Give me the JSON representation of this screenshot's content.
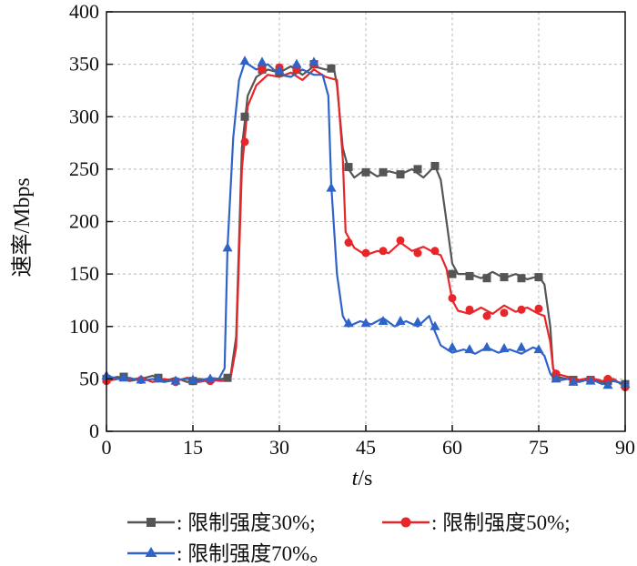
{
  "colors": {
    "series30": "#555555",
    "series50": "#e8262a",
    "series70": "#2f63c9",
    "grid": "#b8b8b8"
  },
  "chart_data": {
    "type": "line",
    "title": "",
    "xlabel_italic": "t",
    "xlabel_rest": "/s",
    "ylabel": "速率/Mbps",
    "xlim": [
      0,
      90
    ],
    "ylim": [
      0,
      400
    ],
    "xticks": [
      0,
      15,
      30,
      45,
      60,
      75,
      90
    ],
    "yticks": [
      0,
      50,
      100,
      150,
      200,
      250,
      300,
      350,
      400
    ],
    "xtick_labels": [
      "0",
      "15",
      "30",
      "45",
      "60",
      "75",
      "90"
    ],
    "ytick_labels": [
      "0",
      "50",
      "100",
      "150",
      "200",
      "250",
      "300",
      "350",
      "400"
    ],
    "grid": true,
    "legend_position": "bottom",
    "series": [
      {
        "name": ": 限制强度30%;",
        "color": "#555555",
        "marker": "square",
        "points": [
          [
            0,
            50
          ],
          [
            2,
            52
          ],
          [
            4,
            48
          ],
          [
            6,
            50
          ],
          [
            8,
            53
          ],
          [
            10,
            48
          ],
          [
            12,
            51
          ],
          [
            14,
            47
          ],
          [
            16,
            50
          ],
          [
            18,
            49
          ],
          [
            20,
            50
          ],
          [
            21.5,
            52
          ],
          [
            22.5,
            90
          ],
          [
            23.5,
            270
          ],
          [
            24.5,
            320
          ],
          [
            26,
            338
          ],
          [
            28,
            345
          ],
          [
            30,
            342
          ],
          [
            32,
            348
          ],
          [
            34,
            340
          ],
          [
            36,
            348
          ],
          [
            38,
            345
          ],
          [
            39.5,
            345
          ],
          [
            40,
            330
          ],
          [
            41,
            270
          ],
          [
            42,
            250
          ],
          [
            43,
            242
          ],
          [
            45,
            250
          ],
          [
            47,
            243
          ],
          [
            49,
            248
          ],
          [
            51,
            245
          ],
          [
            53,
            250
          ],
          [
            55,
            242
          ],
          [
            57,
            253
          ],
          [
            58,
            240
          ],
          [
            59,
            200
          ],
          [
            60,
            160
          ],
          [
            61,
            150
          ],
          [
            63,
            150
          ],
          [
            65,
            146
          ],
          [
            67,
            152
          ],
          [
            69,
            146
          ],
          [
            71,
            150
          ],
          [
            73,
            145
          ],
          [
            75,
            148
          ],
          [
            76,
            140
          ],
          [
            77,
            100
          ],
          [
            77.5,
            60
          ],
          [
            78,
            52
          ],
          [
            80,
            50
          ],
          [
            82,
            48
          ],
          [
            84,
            50
          ],
          [
            86,
            47
          ],
          [
            88,
            48
          ],
          [
            90,
            45
          ]
        ],
        "markers": [
          [
            0,
            50
          ],
          [
            3,
            52
          ],
          [
            9,
            51
          ],
          [
            15,
            48
          ],
          [
            21,
            51
          ],
          [
            24,
            300
          ],
          [
            27,
            345
          ],
          [
            30,
            342
          ],
          [
            33,
            345
          ],
          [
            36,
            350
          ],
          [
            39,
            346
          ],
          [
            42,
            252
          ],
          [
            45,
            247
          ],
          [
            48,
            247
          ],
          [
            51,
            245
          ],
          [
            54,
            250
          ],
          [
            57,
            253
          ],
          [
            60,
            150
          ],
          [
            63,
            148
          ],
          [
            66,
            146
          ],
          [
            69,
            147
          ],
          [
            72,
            146
          ],
          [
            75,
            147
          ],
          [
            78,
            52
          ],
          [
            81,
            49
          ],
          [
            84,
            49
          ],
          [
            87,
            48
          ],
          [
            90,
            45
          ]
        ]
      },
      {
        "name": ": 限制强度50%;",
        "color": "#e8262a",
        "marker": "circle",
        "points": [
          [
            0,
            48
          ],
          [
            2,
            50
          ],
          [
            4,
            49
          ],
          [
            6,
            51
          ],
          [
            8,
            47
          ],
          [
            10,
            50
          ],
          [
            12,
            48
          ],
          [
            14,
            51
          ],
          [
            16,
            47
          ],
          [
            18,
            49
          ],
          [
            20,
            48
          ],
          [
            21.5,
            50
          ],
          [
            22.5,
            80
          ],
          [
            23.5,
            250
          ],
          [
            24.5,
            310
          ],
          [
            26,
            330
          ],
          [
            28,
            340
          ],
          [
            30,
            338
          ],
          [
            32,
            342
          ],
          [
            34,
            335
          ],
          [
            36,
            345
          ],
          [
            38,
            338
          ],
          [
            40,
            335
          ],
          [
            41,
            260
          ],
          [
            41.5,
            190
          ],
          [
            43,
            175
          ],
          [
            45,
            168
          ],
          [
            47,
            172
          ],
          [
            49,
            170
          ],
          [
            51,
            180
          ],
          [
            53,
            172
          ],
          [
            55,
            176
          ],
          [
            57,
            170
          ],
          [
            58,
            168
          ],
          [
            59,
            155
          ],
          [
            60,
            125
          ],
          [
            61,
            115
          ],
          [
            63,
            112
          ],
          [
            65,
            118
          ],
          [
            67,
            112
          ],
          [
            69,
            120
          ],
          [
            71,
            114
          ],
          [
            73,
            118
          ],
          [
            75,
            112
          ],
          [
            76,
            110
          ],
          [
            77,
            85
          ],
          [
            77.5,
            60
          ],
          [
            78,
            55
          ],
          [
            80,
            52
          ],
          [
            82,
            49
          ],
          [
            84,
            51
          ],
          [
            86,
            48
          ],
          [
            88,
            50
          ],
          [
            90,
            42
          ]
        ],
        "markers": [
          [
            0,
            48
          ],
          [
            6,
            49
          ],
          [
            12,
            47
          ],
          [
            18,
            48
          ],
          [
            24,
            276
          ],
          [
            27,
            345
          ],
          [
            30,
            347
          ],
          [
            33,
            345
          ],
          [
            36,
            350
          ],
          [
            42,
            180
          ],
          [
            45,
            170
          ],
          [
            48,
            172
          ],
          [
            51,
            182
          ],
          [
            54,
            170
          ],
          [
            57,
            172
          ],
          [
            60,
            127
          ],
          [
            63,
            116
          ],
          [
            66,
            110
          ],
          [
            69,
            113
          ],
          [
            72,
            116
          ],
          [
            75,
            117
          ],
          [
            78,
            55
          ],
          [
            81,
            48
          ],
          [
            84,
            49
          ],
          [
            87,
            50
          ],
          [
            90,
            42
          ]
        ]
      },
      {
        "name": ": 限制强度70%。",
        "color": "#2f63c9",
        "marker": "triangle",
        "points": [
          [
            0,
            53
          ],
          [
            2,
            50
          ],
          [
            4,
            51
          ],
          [
            6,
            48
          ],
          [
            8,
            50
          ],
          [
            10,
            47
          ],
          [
            12,
            49
          ],
          [
            14,
            50
          ],
          [
            16,
            48
          ],
          [
            18,
            51
          ],
          [
            19.5,
            50
          ],
          [
            20.5,
            60
          ],
          [
            21,
            175
          ],
          [
            22,
            280
          ],
          [
            23,
            335
          ],
          [
            24,
            352
          ],
          [
            26,
            345
          ],
          [
            28,
            350
          ],
          [
            30,
            340
          ],
          [
            32,
            338
          ],
          [
            34,
            345
          ],
          [
            36,
            340
          ],
          [
            37.5,
            340
          ],
          [
            38.5,
            320
          ],
          [
            39,
            235
          ],
          [
            40,
            150
          ],
          [
            41,
            110
          ],
          [
            42,
            100
          ],
          [
            44,
            105
          ],
          [
            46,
            102
          ],
          [
            48,
            108
          ],
          [
            50,
            100
          ],
          [
            52,
            105
          ],
          [
            54,
            100
          ],
          [
            56,
            110
          ],
          [
            57,
            95
          ],
          [
            58,
            82
          ],
          [
            60,
            75
          ],
          [
            62,
            78
          ],
          [
            64,
            74
          ],
          [
            66,
            80
          ],
          [
            68,
            75
          ],
          [
            70,
            78
          ],
          [
            72,
            74
          ],
          [
            74,
            80
          ],
          [
            75,
            78
          ],
          [
            76,
            72
          ],
          [
            77,
            55
          ],
          [
            78,
            48
          ],
          [
            80,
            50
          ],
          [
            82,
            47
          ],
          [
            84,
            50
          ],
          [
            86,
            45
          ],
          [
            88,
            48
          ],
          [
            90,
            45
          ]
        ],
        "markers": [
          [
            0,
            53
          ],
          [
            3,
            51
          ],
          [
            6,
            49
          ],
          [
            9,
            50
          ],
          [
            12,
            48
          ],
          [
            15,
            49
          ],
          [
            18,
            50
          ],
          [
            21,
            175
          ],
          [
            24,
            353
          ],
          [
            27,
            352
          ],
          [
            30,
            344
          ],
          [
            33,
            350
          ],
          [
            36,
            352
          ],
          [
            39,
            232
          ],
          [
            42,
            103
          ],
          [
            45,
            103
          ],
          [
            48,
            105
          ],
          [
            51,
            105
          ],
          [
            54,
            104
          ],
          [
            57,
            100
          ],
          [
            60,
            80
          ],
          [
            63,
            78
          ],
          [
            66,
            80
          ],
          [
            69,
            79
          ],
          [
            72,
            80
          ],
          [
            75,
            78
          ],
          [
            78,
            50
          ],
          [
            81,
            47
          ],
          [
            84,
            48
          ],
          [
            87,
            44
          ],
          [
            90,
            45
          ]
        ]
      }
    ]
  }
}
